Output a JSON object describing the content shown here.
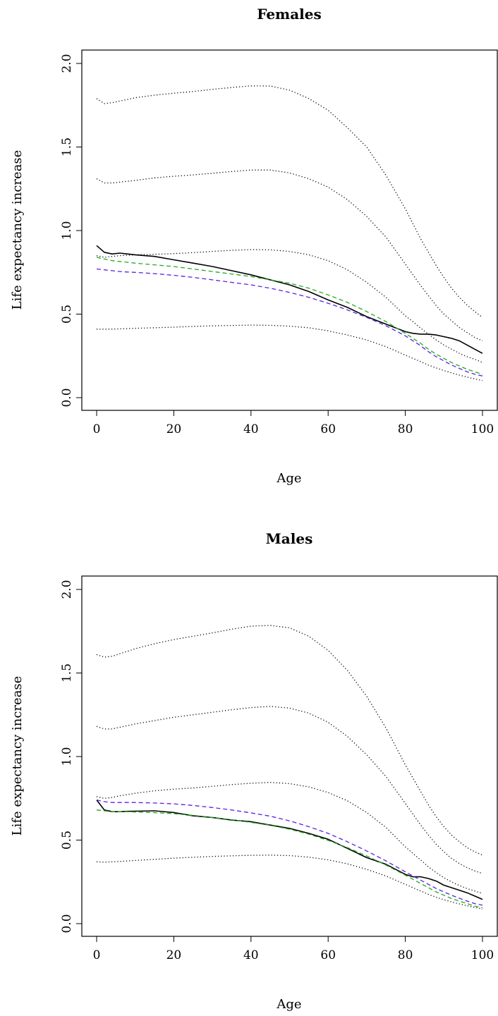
{
  "chart_data": [
    {
      "type": "line",
      "title": "Females",
      "xlabel": "Age",
      "ylabel": "Life expectancy increase",
      "xlim": [
        0,
        100
      ],
      "ylim": [
        0.0,
        2.0
      ],
      "xticks": [
        "0",
        "20",
        "40",
        "60",
        "80",
        "100"
      ],
      "yticks": [
        "0.0",
        "0.5",
        "1.0",
        "1.5",
        "2.0"
      ],
      "x": [
        0,
        2,
        4,
        6,
        8,
        10,
        15,
        20,
        25,
        30,
        35,
        40,
        45,
        50,
        55,
        60,
        65,
        70,
        75,
        80,
        82,
        84,
        86,
        88,
        90,
        92,
        94,
        96,
        98,
        100
      ],
      "series": [
        {
          "style": "solid",
          "color": "#000000",
          "values": [
            0.91,
            0.87,
            0.86,
            0.865,
            0.86,
            0.855,
            0.845,
            0.825,
            0.805,
            0.785,
            0.76,
            0.735,
            0.705,
            0.675,
            0.635,
            0.585,
            0.54,
            0.485,
            0.44,
            0.395,
            0.385,
            0.38,
            0.38,
            0.375,
            0.365,
            0.355,
            0.34,
            0.315,
            0.29,
            0.265
          ]
        },
        {
          "style": "dashed",
          "color": "#22aa22",
          "values": [
            0.84,
            0.83,
            0.82,
            0.815,
            0.81,
            0.805,
            0.795,
            0.785,
            0.77,
            0.755,
            0.74,
            0.725,
            0.705,
            0.685,
            0.655,
            0.615,
            0.57,
            0.515,
            0.455,
            0.385,
            0.355,
            0.325,
            0.29,
            0.26,
            0.235,
            0.21,
            0.19,
            0.17,
            0.155,
            0.14
          ]
        },
        {
          "style": "dashed",
          "color": "#5a22e0",
          "values": [
            0.77,
            0.765,
            0.76,
            0.755,
            0.752,
            0.75,
            0.742,
            0.732,
            0.72,
            0.705,
            0.69,
            0.675,
            0.655,
            0.63,
            0.6,
            0.565,
            0.525,
            0.48,
            0.43,
            0.37,
            0.34,
            0.31,
            0.275,
            0.245,
            0.22,
            0.195,
            0.175,
            0.155,
            0.14,
            0.13
          ]
        },
        {
          "style": "dotted",
          "color": "#000000",
          "values": [
            0.41,
            0.41,
            0.41,
            0.412,
            0.413,
            0.415,
            0.418,
            0.422,
            0.426,
            0.43,
            0.432,
            0.434,
            0.433,
            0.428,
            0.418,
            0.4,
            0.375,
            0.345,
            0.305,
            0.255,
            0.235,
            0.215,
            0.195,
            0.178,
            0.162,
            0.148,
            0.135,
            0.123,
            0.112,
            0.102
          ]
        },
        {
          "style": "dotted",
          "color": "#000000",
          "values": [
            0.85,
            0.84,
            0.845,
            0.85,
            0.852,
            0.855,
            0.858,
            0.862,
            0.868,
            0.875,
            0.882,
            0.886,
            0.885,
            0.875,
            0.855,
            0.82,
            0.765,
            0.69,
            0.6,
            0.49,
            0.455,
            0.415,
            0.38,
            0.345,
            0.315,
            0.29,
            0.265,
            0.245,
            0.23,
            0.21
          ]
        },
        {
          "style": "dotted",
          "color": "#000000",
          "values": [
            1.31,
            1.285,
            1.285,
            1.29,
            1.295,
            1.3,
            1.315,
            1.325,
            1.333,
            1.343,
            1.353,
            1.362,
            1.362,
            1.345,
            1.31,
            1.26,
            1.185,
            1.085,
            0.96,
            0.8,
            0.735,
            0.67,
            0.61,
            0.55,
            0.5,
            0.46,
            0.42,
            0.39,
            0.36,
            0.34
          ]
        },
        {
          "style": "dotted",
          "color": "#000000",
          "values": [
            1.79,
            1.76,
            1.765,
            1.775,
            1.785,
            1.795,
            1.81,
            1.822,
            1.832,
            1.845,
            1.856,
            1.866,
            1.865,
            1.84,
            1.79,
            1.72,
            1.615,
            1.5,
            1.33,
            1.13,
            1.04,
            0.95,
            0.87,
            0.79,
            0.72,
            0.655,
            0.6,
            0.555,
            0.515,
            0.48
          ]
        }
      ]
    },
    {
      "type": "line",
      "title": "Males",
      "xlabel": "Age",
      "ylabel": "Life expectancy increase",
      "xlim": [
        0,
        100
      ],
      "ylim": [
        0.0,
        2.0
      ],
      "xticks": [
        "0",
        "20",
        "40",
        "60",
        "80",
        "100"
      ],
      "yticks": [
        "0.0",
        "0.5",
        "1.0",
        "1.5",
        "2.0"
      ],
      "x": [
        0,
        2,
        4,
        6,
        8,
        10,
        15,
        20,
        25,
        30,
        35,
        40,
        45,
        50,
        55,
        60,
        65,
        70,
        75,
        80,
        82,
        84,
        86,
        88,
        90,
        92,
        94,
        96,
        98,
        100
      ],
      "series": [
        {
          "style": "solid",
          "color": "#000000",
          "values": [
            0.74,
            0.68,
            0.67,
            0.67,
            0.672,
            0.673,
            0.675,
            0.665,
            0.645,
            0.635,
            0.62,
            0.61,
            0.59,
            0.57,
            0.54,
            0.505,
            0.45,
            0.395,
            0.355,
            0.295,
            0.28,
            0.28,
            0.27,
            0.255,
            0.23,
            0.215,
            0.2,
            0.185,
            0.165,
            0.145
          ]
        },
        {
          "style": "dashed",
          "color": "#22aa22",
          "values": [
            0.68,
            0.675,
            0.67,
            0.67,
            0.67,
            0.668,
            0.664,
            0.658,
            0.648,
            0.636,
            0.622,
            0.606,
            0.588,
            0.565,
            0.535,
            0.498,
            0.455,
            0.405,
            0.35,
            0.29,
            0.265,
            0.24,
            0.215,
            0.19,
            0.17,
            0.15,
            0.135,
            0.12,
            0.105,
            0.095
          ]
        },
        {
          "style": "dashed",
          "color": "#5a22e0",
          "values": [
            0.74,
            0.73,
            0.725,
            0.725,
            0.725,
            0.725,
            0.722,
            0.717,
            0.707,
            0.695,
            0.68,
            0.663,
            0.643,
            0.615,
            0.58,
            0.54,
            0.49,
            0.435,
            0.375,
            0.31,
            0.285,
            0.26,
            0.235,
            0.21,
            0.19,
            0.17,
            0.152,
            0.135,
            0.12,
            0.11
          ]
        },
        {
          "style": "dotted",
          "color": "#000000",
          "values": [
            0.37,
            0.368,
            0.37,
            0.372,
            0.375,
            0.378,
            0.385,
            0.392,
            0.397,
            0.402,
            0.406,
            0.409,
            0.41,
            0.407,
            0.398,
            0.382,
            0.358,
            0.325,
            0.285,
            0.235,
            0.215,
            0.195,
            0.175,
            0.158,
            0.143,
            0.13,
            0.118,
            0.107,
            0.097,
            0.088
          ]
        },
        {
          "style": "dotted",
          "color": "#000000",
          "values": [
            0.76,
            0.75,
            0.755,
            0.765,
            0.772,
            0.78,
            0.795,
            0.805,
            0.812,
            0.822,
            0.832,
            0.84,
            0.845,
            0.838,
            0.818,
            0.785,
            0.735,
            0.665,
            0.575,
            0.46,
            0.42,
            0.38,
            0.34,
            0.305,
            0.275,
            0.25,
            0.228,
            0.21,
            0.195,
            0.18
          ]
        },
        {
          "style": "dotted",
          "color": "#000000",
          "values": [
            1.18,
            1.165,
            1.165,
            1.175,
            1.185,
            1.195,
            1.215,
            1.235,
            1.25,
            1.265,
            1.28,
            1.293,
            1.3,
            1.29,
            1.26,
            1.205,
            1.12,
            1.01,
            0.88,
            0.72,
            0.655,
            0.59,
            0.53,
            0.475,
            0.43,
            0.39,
            0.36,
            0.335,
            0.315,
            0.3
          ]
        },
        {
          "style": "dotted",
          "color": "#000000",
          "values": [
            1.61,
            1.595,
            1.6,
            1.615,
            1.63,
            1.645,
            1.675,
            1.7,
            1.72,
            1.74,
            1.762,
            1.78,
            1.785,
            1.77,
            1.72,
            1.635,
            1.515,
            1.36,
            1.17,
            0.95,
            0.87,
            0.79,
            0.71,
            0.64,
            0.58,
            0.53,
            0.49,
            0.455,
            0.43,
            0.41
          ]
        }
      ]
    }
  ]
}
